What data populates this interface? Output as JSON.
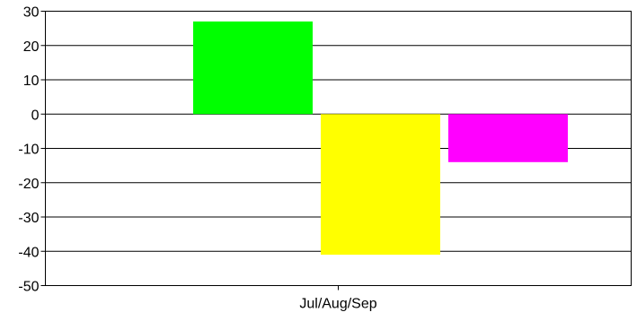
{
  "chart_data": {
    "type": "bar",
    "categories": [
      "Jul/Aug/Sep"
    ],
    "series": [
      {
        "values": [
          27
        ],
        "color": "#00ff00"
      },
      {
        "values": [
          -41
        ],
        "color": "#ffff00"
      },
      {
        "values": [
          -14
        ],
        "color": "#ff00ff"
      }
    ],
    "ylim": [
      -50,
      30
    ],
    "yticks": [
      "30",
      "20",
      "10",
      "0",
      "-10",
      "-20",
      "-30",
      "-40",
      "-50"
    ],
    "grid": true,
    "legend": "none"
  }
}
